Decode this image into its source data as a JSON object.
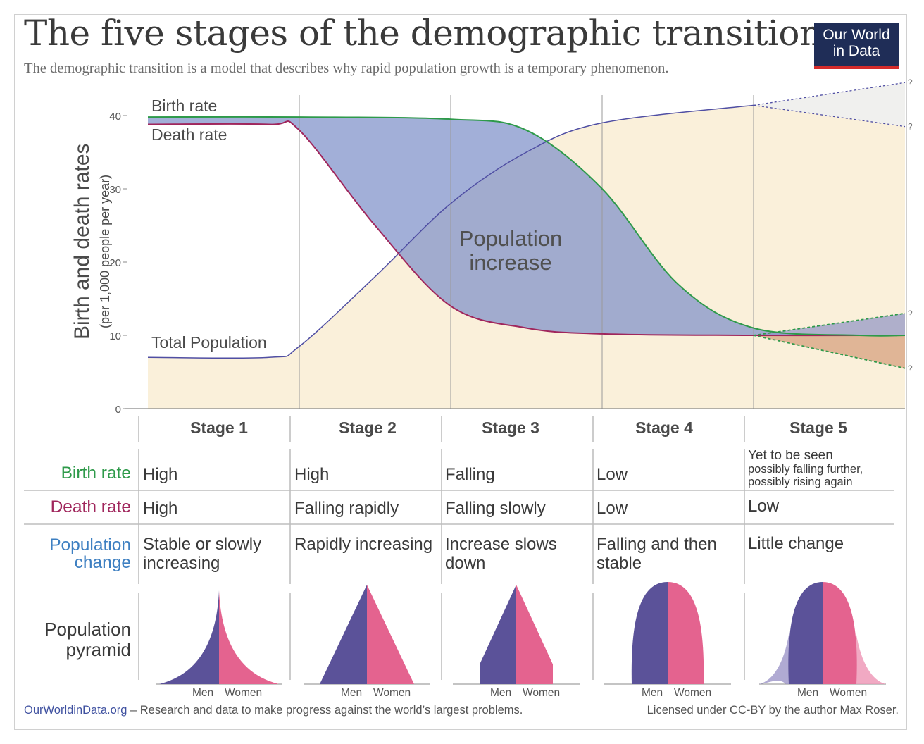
{
  "header": {
    "title": "The five stages of the demographic transition",
    "subtitle": "The demographic transition is a model that describes why rapid population growth is a temporary phenomenon.",
    "logo_line1": "Our World",
    "logo_line2": "in Data"
  },
  "chart_data": {
    "type": "line",
    "ylabel": "Birth and death rates",
    "ylabel_sub": "(per 1,000 people per year)",
    "y_ticks": [
      "0",
      "10",
      "20",
      "30",
      "40"
    ],
    "ylim": [
      0,
      40
    ],
    "series": [
      {
        "name": "Birth rate",
        "color": "#2e9a4a",
        "x": [
          0,
          1,
          2,
          2.5,
          3,
          3.5,
          4,
          4.7,
          5
        ],
        "y": [
          39.8,
          39.8,
          39.5,
          38.0,
          30.0,
          17.0,
          11.0,
          10.0,
          10.0
        ]
      },
      {
        "name": "Death rate",
        "color": "#a0265c",
        "x": [
          0,
          0.8,
          1,
          1.5,
          2,
          2.5,
          3,
          4,
          5
        ],
        "y": [
          38.8,
          38.8,
          38.0,
          25.0,
          14.0,
          11.0,
          10.2,
          10.0,
          10.0
        ]
      },
      {
        "name": "Total Population",
        "color": "#4f4ea3",
        "x": [
          0,
          0.8,
          1,
          1.5,
          2,
          2.5,
          3,
          4
        ],
        "y": [
          7.0,
          7.0,
          8.5,
          18.0,
          28.0,
          35.0,
          39.0,
          41.4
        ]
      }
    ],
    "stage5_projection": {
      "population_up": 44.5,
      "population_down": 38.5,
      "birth_up": 13.0,
      "birth_down": 5.5,
      "marker": "?"
    },
    "area_label": [
      "Population",
      "increase"
    ]
  },
  "series_labels": {
    "birth": "Birth rate",
    "death": "Death rate",
    "population": "Total Population"
  },
  "table": {
    "stages": [
      "Stage 1",
      "Stage 2",
      "Stage 3",
      "Stage 4",
      "Stage 5"
    ],
    "row_labels": {
      "birth": "Birth rate",
      "death": "Death rate",
      "population_line1": "Population",
      "population_line2": "change",
      "pyramid_line1": "Population",
      "pyramid_line2": "pyramid"
    },
    "row_colors": {
      "birth": "#2e9a4a",
      "death": "#a0265c",
      "population": "#3d7fc1"
    },
    "birth": [
      "High",
      "High",
      "Falling",
      "Low",
      "Yet to be seen"
    ],
    "birth_stage5_note_1": "possibly falling further,",
    "birth_stage5_note_2": "possibly rising again",
    "death": [
      "High",
      "Falling rapidly",
      "Falling slowly",
      "Low",
      "Low"
    ],
    "population_change": [
      "Stable or slowly increasing",
      "Rapidly increasing",
      "Increase slows down",
      "Falling and then stable",
      "Little change"
    ],
    "pyramid_men": "Men",
    "pyramid_women": "Women",
    "men_color": "#5b5299",
    "women_color": "#e4638f"
  },
  "footer": {
    "site": "OurWorldinData.org",
    "tagline": " – Research and data to make progress against the world’s largest problems.",
    "license": "Licensed under CC-BY by the author Max Roser."
  }
}
